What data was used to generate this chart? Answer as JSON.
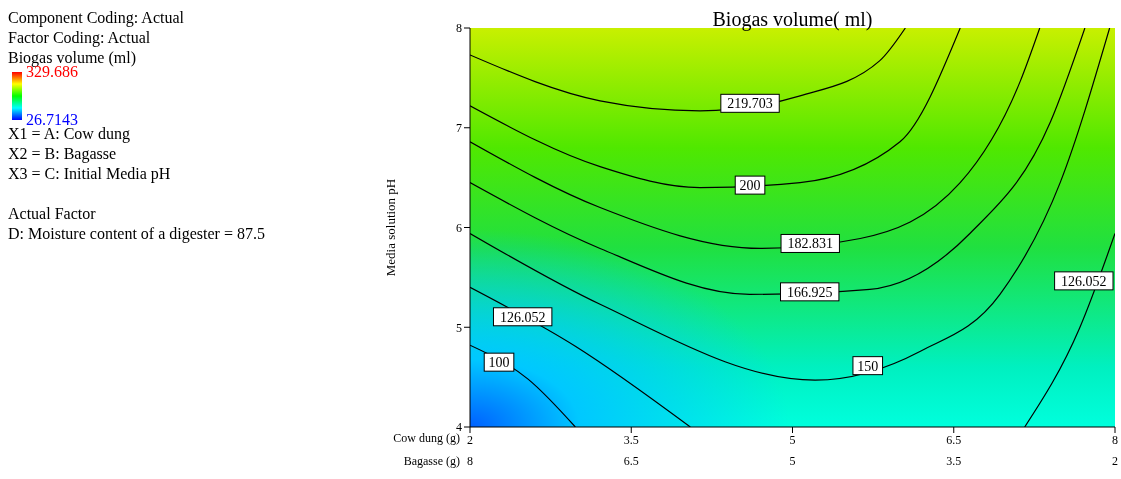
{
  "chart_data": {
    "type": "line",
    "title": "Biogas volume( ml)",
    "xlabel": "Cow dung (g)",
    "x2label": "Bagasse (g)",
    "ylabel": "Media solution pH",
    "clabel": "Biogas volume (ml)",
    "clim": [
      26.7143,
      329.686
    ],
    "cticks": [
      329.686,
      26.7143
    ],
    "xlim": [
      2,
      8
    ],
    "xticks": [
      2,
      3.5,
      5,
      6.5,
      8
    ],
    "x2lim": [
      8,
      2
    ],
    "x2ticks": [
      8,
      6.5,
      5,
      3.5,
      2
    ],
    "ylim": [
      4,
      8
    ],
    "yticks": [
      4,
      5,
      6,
      7,
      8
    ],
    "marker": "none",
    "line_style": "solid",
    "series": [
      {
        "name": "100",
        "color": "#000000",
        "x": [
          2,
          2.54,
          2.98
        ],
        "values": [
          4.82,
          4.48,
          4
        ]
      },
      {
        "name": "126.052",
        "color": "#000000",
        "x": [
          2,
          2.98,
          4.05
        ],
        "values": [
          5.4,
          4.81,
          4
        ]
      },
      {
        "name": "126.052",
        "color": "#000000",
        "x": [
          8,
          7.67,
          7.16
        ],
        "values": [
          5.94,
          4.99,
          4
        ]
      },
      {
        "name": "150",
        "color": "#000000",
        "x": [
          2,
          3.21,
          5.21,
          6.19,
          6.93,
          7.49,
          7.95
        ],
        "values": [
          5.94,
          5.23,
          4.47,
          4.76,
          5.33,
          6.45,
          8
        ]
      },
      {
        "name": "166.925",
        "color": "#000000",
        "x": [
          2,
          3.21,
          4.6,
          5.72,
          6.65,
          7.4,
          7.72
        ],
        "values": [
          6.45,
          5.79,
          5.33,
          5.38,
          5.94,
          7.06,
          8
        ]
      },
      {
        "name": "182.831",
        "color": "#000000",
        "x": [
          2,
          3.21,
          4.7,
          5.63,
          6.56,
          7.12,
          7.3
        ],
        "values": [
          6.86,
          6.2,
          5.79,
          5.89,
          6.45,
          7.47,
          8
        ]
      },
      {
        "name": "200",
        "color": "#000000",
        "x": [
          2,
          3.21,
          4.14,
          5.07,
          6,
          6.56
        ],
        "values": [
          7.22,
          6.61,
          6.4,
          6.45,
          6.86,
          8
        ]
      },
      {
        "name": "219.703",
        "color": "#000000",
        "x": [
          2,
          3.21,
          4.14,
          5.07,
          5.81,
          6.05
        ],
        "values": [
          7.73,
          7.27,
          7.17,
          7.32,
          7.67,
          8
        ]
      }
    ],
    "annotations": [
      "Component Coding: Actual",
      "Factor Coding: Actual",
      "X1 = A: Cow dung",
      "X2 = B: Bagasse",
      "X3 = C: Initial Media pH",
      "Actual Factor",
      "D: Moisture content of a digester = 87.5"
    ]
  }
}
